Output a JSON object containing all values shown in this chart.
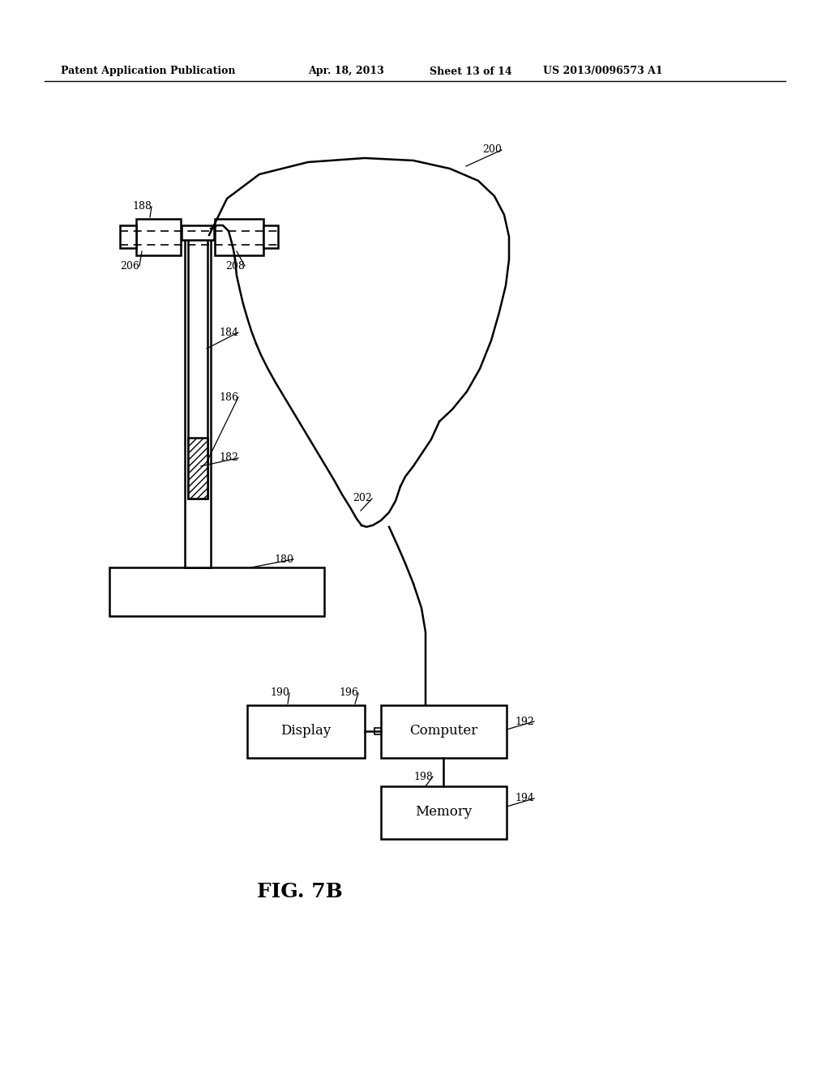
{
  "bg_color": "#ffffff",
  "header_text": "Patent Application Publication",
  "header_date": "Apr. 18, 2013",
  "header_sheet": "Sheet 13 of 14",
  "header_patent": "US 2013/0096573 A1",
  "fig_label": "FIG. 7B"
}
